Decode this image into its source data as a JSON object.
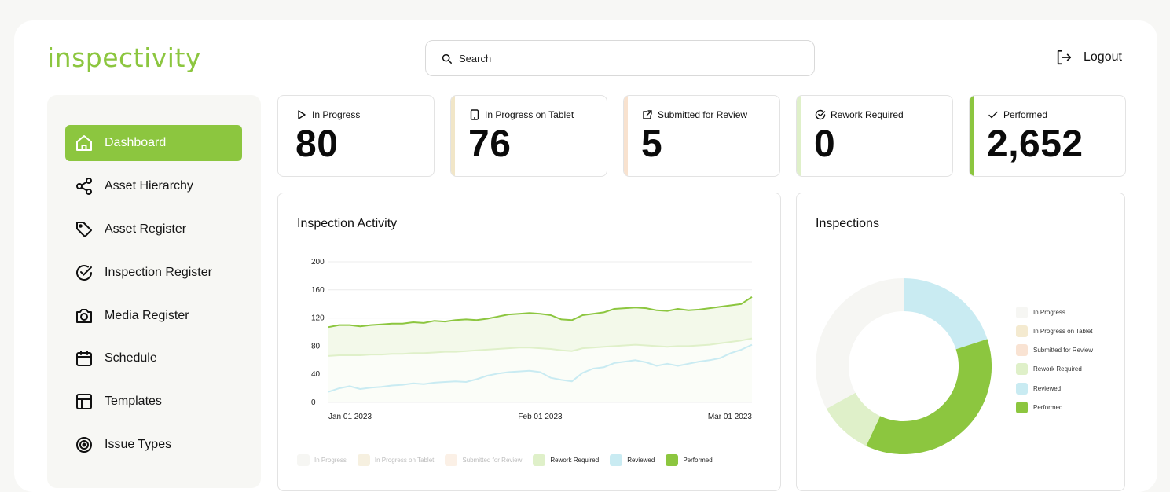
{
  "app": {
    "logo": "inspectivity"
  },
  "search": {
    "placeholder": "Search"
  },
  "header": {
    "logout_label": "Logout"
  },
  "sidebar": {
    "items": [
      {
        "label": "Dashboard",
        "icon": "home-icon",
        "active": true
      },
      {
        "label": "Asset Hierarchy",
        "icon": "share-icon",
        "active": false
      },
      {
        "label": "Asset Register",
        "icon": "tag-icon",
        "active": false
      },
      {
        "label": "Inspection Register",
        "icon": "check-circle-icon",
        "active": false
      },
      {
        "label": "Media Register",
        "icon": "camera-icon",
        "active": false
      },
      {
        "label": "Schedule",
        "icon": "calendar-icon",
        "active": false
      },
      {
        "label": "Templates",
        "icon": "layout-icon",
        "active": false
      },
      {
        "label": "Issue Types",
        "icon": "target-icon",
        "active": false
      }
    ]
  },
  "stats": [
    {
      "label": "In Progress",
      "value": "80",
      "icon": "play-icon",
      "color": "#ffffff"
    },
    {
      "label": "In Progress on Tablet",
      "value": "76",
      "icon": "tablet-icon",
      "color": "#f1e6c8"
    },
    {
      "label": "Submitted for Review",
      "value": "5",
      "icon": "external-link-icon",
      "color": "#f8e2cf"
    },
    {
      "label": "Rework Required",
      "value": "0",
      "icon": "check-circle-icon",
      "color": "#dff0c9"
    },
    {
      "label": "Performed",
      "value": "2,652",
      "icon": "check-icon",
      "color": "#8cc63f"
    }
  ],
  "activity": {
    "title": "Inspection Activity",
    "legend": [
      {
        "label": "In Progress",
        "color": "#f6f6f3",
        "muted": true
      },
      {
        "label": "In Progress on Tablet",
        "color": "#f6f0e0",
        "muted": true
      },
      {
        "label": "Submitted for Review",
        "color": "#fbf0e6",
        "muted": true
      },
      {
        "label": "Rework Required",
        "color": "#dff0c9",
        "muted": false
      },
      {
        "label": "Reviewed",
        "color": "#c9ebf2",
        "muted": false
      },
      {
        "label": "Performed",
        "color": "#8cc63f",
        "muted": false
      }
    ]
  },
  "inspections": {
    "title": "Inspections",
    "legend": [
      {
        "label": "In Progress",
        "color": "#f6f6f3"
      },
      {
        "label": "In Progress on Tablet",
        "color": "#f4ead0"
      },
      {
        "label": "Submitted for Review",
        "color": "#f9e3d3"
      },
      {
        "label": "Rework Required",
        "color": "#dff0c9"
      },
      {
        "label": "Reviewed",
        "color": "#c9ebf2"
      },
      {
        "label": "Performed",
        "color": "#8cc63f"
      }
    ]
  },
  "chart_data": [
    {
      "type": "line",
      "title": "Inspection Activity",
      "x_ticks": [
        "Jan 01 2023",
        "Feb 01 2023",
        "Mar 01 2023"
      ],
      "ylim": [
        0,
        200
      ],
      "y_ticks": [
        0,
        40,
        80,
        120,
        160,
        200
      ],
      "grid": true,
      "series": [
        {
          "name": "Performed",
          "color": "#8cc63f",
          "values": [
            107,
            110,
            110,
            108,
            110,
            111,
            112,
            112,
            114,
            113,
            116,
            115,
            117,
            118,
            117,
            119,
            122,
            125,
            126,
            127,
            126,
            124,
            118,
            117,
            124,
            126,
            128,
            133,
            134,
            135,
            134,
            131,
            130,
            133,
            131,
            132,
            134,
            136,
            138,
            140,
            150
          ]
        },
        {
          "name": "Rework Required",
          "color": "#dff0c9",
          "values": [
            66,
            67,
            67,
            67,
            68,
            68,
            69,
            69,
            70,
            70,
            71,
            72,
            72,
            73,
            74,
            75,
            76,
            77,
            78,
            78,
            77,
            76,
            74,
            73,
            77,
            78,
            79,
            80,
            81,
            82,
            81,
            80,
            79,
            80,
            80,
            81,
            82,
            84,
            86,
            88,
            91
          ]
        },
        {
          "name": "Reviewed",
          "color": "#c9ebf2",
          "values": [
            15,
            20,
            23,
            19,
            21,
            22,
            24,
            25,
            27,
            26,
            28,
            29,
            30,
            29,
            33,
            38,
            41,
            43,
            44,
            45,
            43,
            35,
            32,
            30,
            42,
            48,
            50,
            56,
            58,
            60,
            57,
            52,
            55,
            52,
            55,
            58,
            60,
            63,
            70,
            75,
            82
          ]
        }
      ]
    },
    {
      "type": "pie",
      "title": "Inspections",
      "donut": true,
      "categories": [
        "In Progress",
        "In Progress on Tablet",
        "Submitted for Review",
        "Rework Required",
        "Reviewed",
        "Performed"
      ],
      "values": [
        33,
        0,
        0,
        10,
        20,
        37
      ]
    }
  ]
}
